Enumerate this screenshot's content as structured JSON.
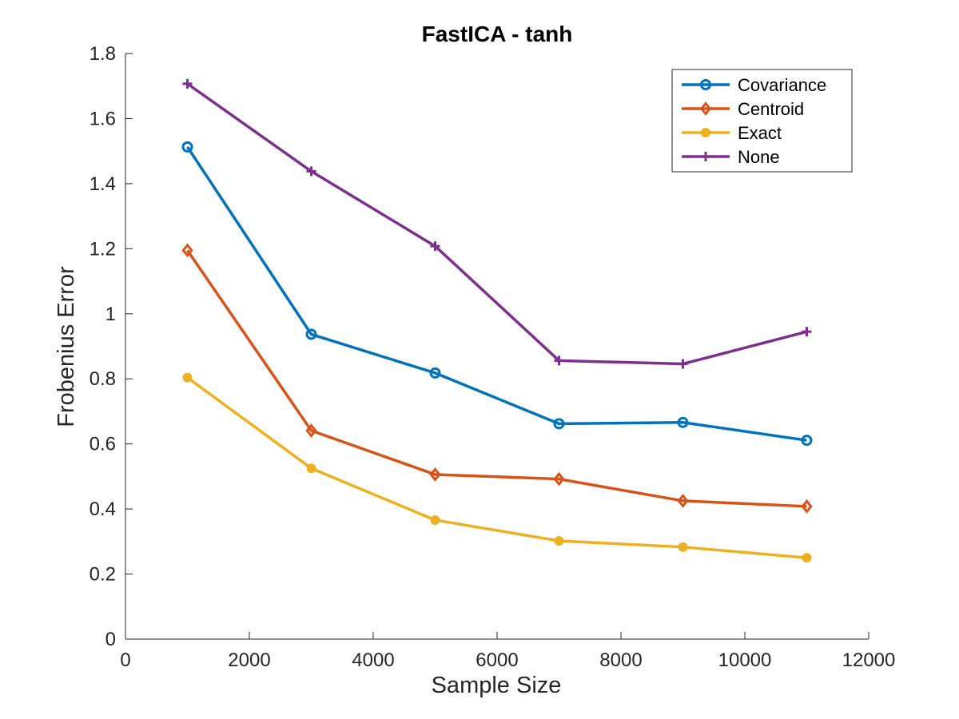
{
  "chart_data": {
    "type": "line",
    "title": "FastICA - tanh",
    "xlabel": "Sample Size",
    "ylabel": "Frobenius Error",
    "xlim": [
      0,
      12000
    ],
    "ylim": [
      0,
      1.8
    ],
    "xticks": [
      0,
      2000,
      4000,
      6000,
      8000,
      10000,
      12000
    ],
    "yticks": [
      0,
      0.2,
      0.4,
      0.6,
      0.8,
      1,
      1.2,
      1.4,
      1.6,
      1.8
    ],
    "xtick_labels": [
      "0",
      "2000",
      "4000",
      "6000",
      "8000",
      "10000",
      "12000"
    ],
    "ytick_labels": [
      "0",
      "0.2",
      "0.4",
      "0.6",
      "0.8",
      "1",
      "1.2",
      "1.4",
      "1.6",
      "1.8"
    ],
    "grid": false,
    "legend_position": "top-right",
    "x": [
      1000,
      3000,
      5000,
      7000,
      9000,
      11000
    ],
    "series": [
      {
        "name": "Covariance",
        "color": "#0072BD",
        "marker": "circle-open",
        "values": [
          1.513,
          0.937,
          0.818,
          0.662,
          0.666,
          0.611
        ]
      },
      {
        "name": "Centroid",
        "color": "#D95319",
        "marker": "diamond-open",
        "values": [
          1.195,
          0.641,
          0.506,
          0.492,
          0.425,
          0.408
        ]
      },
      {
        "name": "Exact",
        "color": "#EDB120",
        "marker": "circle-filled",
        "values": [
          0.804,
          0.525,
          0.366,
          0.302,
          0.283,
          0.25
        ]
      },
      {
        "name": "None",
        "color": "#7E2F8E",
        "marker": "plus",
        "values": [
          1.707,
          1.438,
          1.208,
          0.856,
          0.846,
          0.945
        ]
      }
    ]
  }
}
